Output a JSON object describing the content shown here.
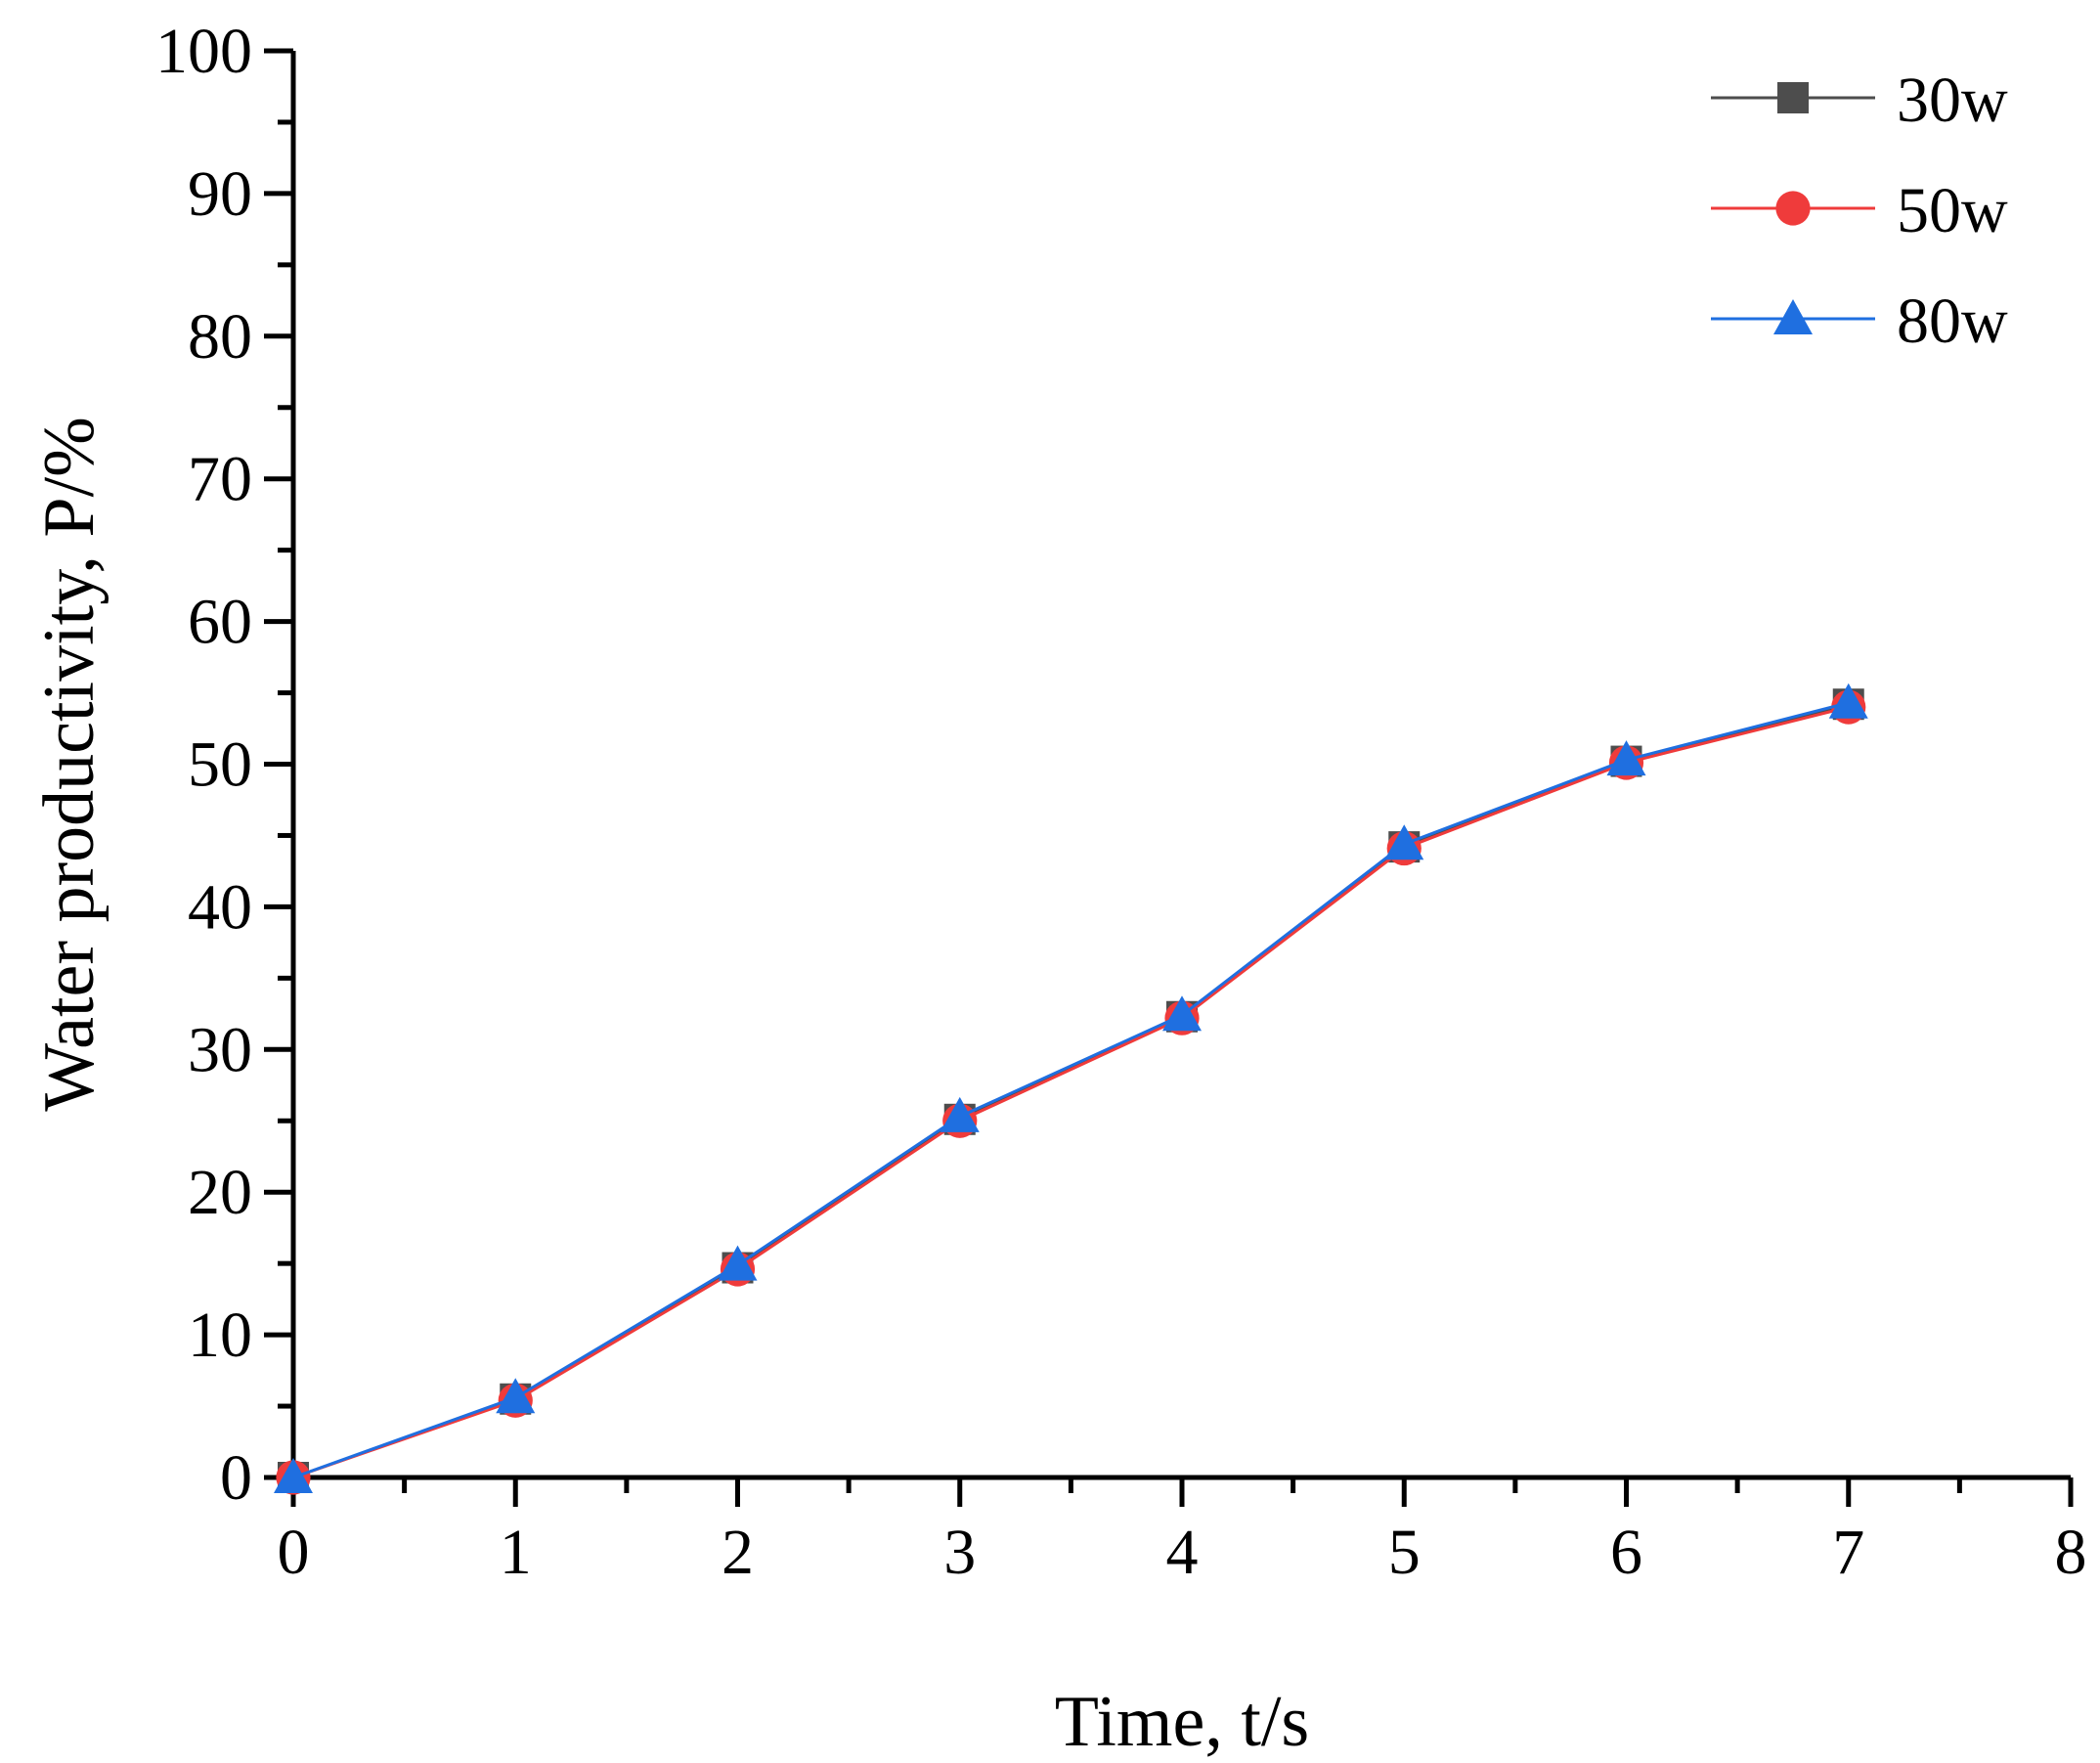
{
  "chart_data": {
    "type": "line",
    "title": "",
    "xlabel": "Time, t/s",
    "ylabel": "Water productivity, P/%",
    "xlim": [
      0,
      8
    ],
    "ylim": [
      0,
      100
    ],
    "xticks": [
      0,
      1,
      2,
      3,
      4,
      5,
      6,
      7,
      8
    ],
    "yticks": [
      0,
      10,
      20,
      30,
      40,
      50,
      60,
      70,
      80,
      90,
      100
    ],
    "grid": false,
    "legend_position": "top-right",
    "x": [
      0,
      1,
      2,
      3,
      4,
      5,
      6,
      7
    ],
    "series": [
      {
        "name": "30w",
        "color": "#4d4d4d",
        "marker": "square",
        "values": [
          0,
          5.5,
          14.7,
          25.1,
          32.3,
          44.2,
          50.2,
          54.2
        ]
      },
      {
        "name": "50w",
        "color": "#ef3b3b",
        "marker": "circle",
        "values": [
          0,
          5.4,
          14.6,
          25.0,
          32.2,
          44.1,
          50.1,
          54.0
        ]
      },
      {
        "name": "80w",
        "color": "#1f6fe0",
        "marker": "triangle",
        "values": [
          0,
          5.6,
          14.9,
          25.3,
          32.4,
          44.4,
          50.3,
          54.3
        ]
      }
    ]
  }
}
